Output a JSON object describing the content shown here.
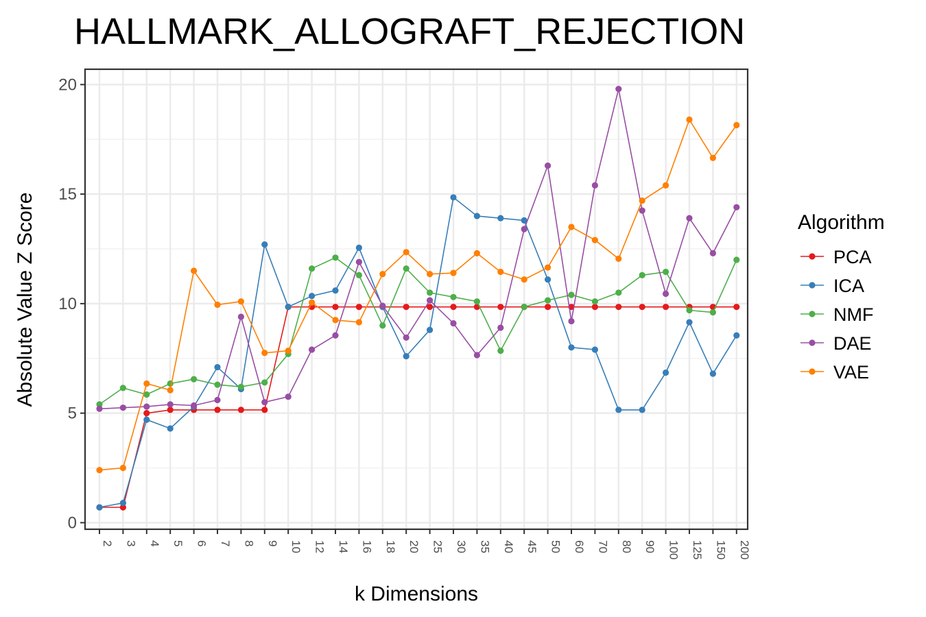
{
  "chart_data": {
    "type": "line",
    "title": "HALLMARK_ALLOGRAFT_REJECTION",
    "xlabel": "k Dimensions",
    "ylabel": "Absolute Value Z Score",
    "x": [
      "2",
      "3",
      "4",
      "5",
      "6",
      "7",
      "8",
      "9",
      "10",
      "12",
      "14",
      "16",
      "18",
      "20",
      "25",
      "30",
      "35",
      "40",
      "45",
      "50",
      "60",
      "70",
      "80",
      "90",
      "100",
      "125",
      "150",
      "200"
    ],
    "ylim": [
      -0.3,
      20.7
    ],
    "yticks": [
      0,
      5,
      10,
      15,
      20
    ],
    "grid": true,
    "legend": {
      "title": "Algorithm",
      "position": "right"
    },
    "series": [
      {
        "name": "PCA",
        "color": "#e41a1c",
        "values": [
          0.7,
          0.7,
          5.0,
          5.15,
          5.15,
          5.15,
          5.15,
          5.15,
          9.85,
          9.85,
          9.85,
          9.85,
          9.85,
          9.85,
          9.85,
          9.85,
          9.85,
          9.85,
          9.85,
          9.85,
          9.85,
          9.85,
          9.85,
          9.85,
          9.85,
          9.85,
          9.85,
          9.85
        ]
      },
      {
        "name": "ICA",
        "color": "#377eb8",
        "values": [
          0.7,
          0.9,
          4.7,
          4.3,
          5.3,
          7.1,
          6.1,
          12.7,
          9.85,
          10.35,
          10.6,
          12.55,
          9.85,
          7.6,
          8.8,
          14.85,
          14.0,
          13.9,
          13.8,
          11.1,
          8.0,
          7.9,
          5.15,
          5.15,
          6.85,
          9.15,
          6.8,
          8.55
        ]
      },
      {
        "name": "NMF",
        "color": "#4daf4a",
        "values": [
          5.4,
          6.15,
          5.85,
          6.35,
          6.55,
          6.3,
          6.2,
          6.4,
          7.7,
          11.6,
          12.1,
          11.3,
          9.0,
          11.6,
          10.5,
          10.3,
          10.1,
          7.85,
          9.85,
          10.15,
          10.4,
          10.1,
          10.5,
          11.3,
          11.45,
          9.7,
          9.6,
          12.0
        ]
      },
      {
        "name": "DAE",
        "color": "#984ea3",
        "values": [
          5.2,
          5.25,
          5.3,
          5.4,
          5.35,
          5.6,
          9.4,
          5.5,
          5.75,
          7.9,
          8.55,
          11.9,
          9.9,
          8.45,
          10.15,
          9.1,
          7.65,
          8.9,
          13.4,
          16.3,
          9.2,
          15.4,
          19.8,
          14.25,
          10.45,
          13.9,
          12.3,
          14.4
        ]
      },
      {
        "name": "VAE",
        "color": "#ff7f00",
        "values": [
          2.4,
          2.5,
          6.35,
          6.05,
          11.5,
          9.95,
          10.1,
          7.75,
          7.85,
          10.05,
          9.25,
          9.15,
          11.35,
          12.35,
          11.35,
          11.4,
          12.3,
          11.45,
          11.1,
          11.65,
          13.5,
          12.9,
          12.05,
          14.7,
          15.4,
          18.4,
          16.65,
          18.15
        ]
      }
    ]
  }
}
